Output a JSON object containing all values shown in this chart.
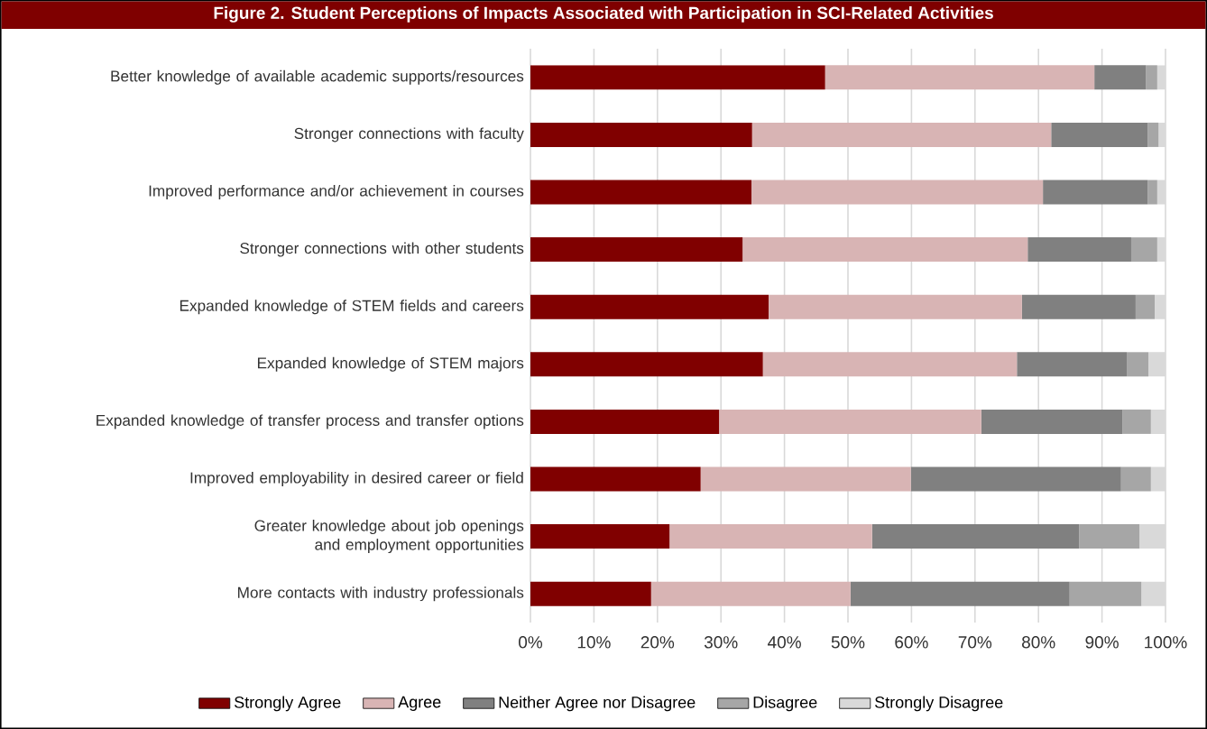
{
  "chart_data": {
    "type": "bar",
    "orientation": "horizontal",
    "stacked": true,
    "title": "Figure 2. Student Perceptions of Impacts Associated with Participation in SCI-Related Activities",
    "categories": [
      "Better knowledge of available academic supports/resources",
      "Stronger connections with faculty",
      "Improved performance and/or achievement in courses",
      "Stronger connections with other students",
      "Expanded knowledge of STEM fields and careers",
      "Expanded knowledge of STEM majors",
      "Expanded knowledge of transfer process and transfer options",
      "Improved employability in desired career or field",
      "Greater knowledge about job openings and employment opportunities",
      "More contacts with industry professionals"
    ],
    "series": [
      {
        "name": "Strongly Agree",
        "color": "#800000",
        "values": [
          46.4,
          34.9,
          34.8,
          33.4,
          37.5,
          36.6,
          29.7,
          26.8,
          21.9,
          19.0
        ]
      },
      {
        "name": "Agree",
        "color": "#d8b4b4",
        "values": [
          42.4,
          47.1,
          45.9,
          44.9,
          39.9,
          40.0,
          41.3,
          33.1,
          31.9,
          31.4
        ]
      },
      {
        "name": "Neither Agree nor Disagree",
        "color": "#808080",
        "values": [
          8.1,
          15.2,
          16.5,
          16.3,
          17.9,
          17.3,
          22.2,
          33.1,
          32.6,
          34.5
        ]
      },
      {
        "name": "Disagree",
        "color": "#a6a6a6",
        "values": [
          1.8,
          1.7,
          1.5,
          4.1,
          3.0,
          3.4,
          4.5,
          4.7,
          9.5,
          11.3
        ]
      },
      {
        "name": "Strongly Disagree",
        "color": "#d9d9d9",
        "values": [
          1.3,
          1.1,
          1.3,
          1.3,
          1.7,
          2.7,
          2.3,
          2.3,
          4.1,
          3.8
        ]
      }
    ],
    "xlim": [
      0,
      100
    ],
    "xticks": [
      {
        "value": 0,
        "label": "0%"
      },
      {
        "value": 10,
        "label": "10%"
      },
      {
        "value": 20,
        "label": "20%"
      },
      {
        "value": 30,
        "label": "30%"
      },
      {
        "value": 40,
        "label": "40%"
      },
      {
        "value": 50,
        "label": "50%"
      },
      {
        "value": 60,
        "label": "60%"
      },
      {
        "value": 70,
        "label": "70%"
      },
      {
        "value": 80,
        "label": "80%"
      },
      {
        "value": 90,
        "label": "90%"
      },
      {
        "value": 100,
        "label": "100%"
      }
    ],
    "grid": "x",
    "legend": "bottom"
  }
}
